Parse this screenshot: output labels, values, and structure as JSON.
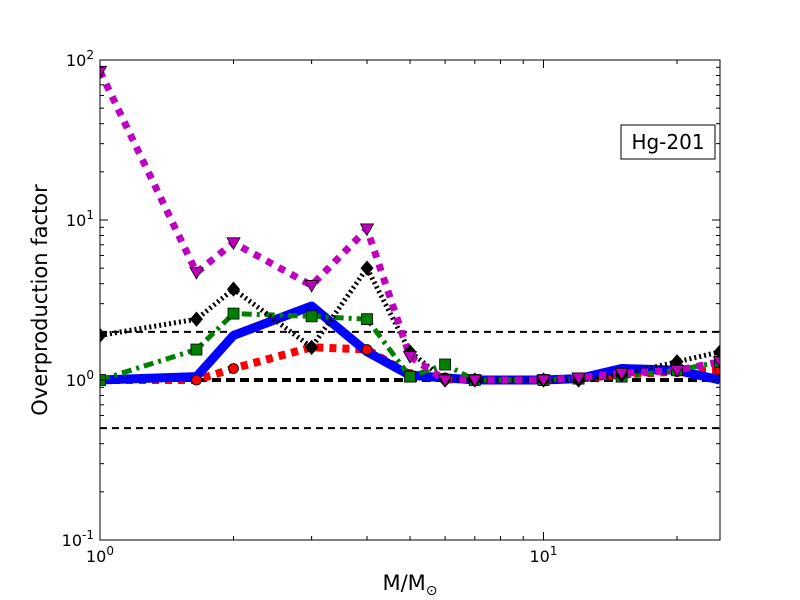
{
  "chart_data": {
    "type": "line",
    "annotation": "Hg-201",
    "xlabel": {
      "text": "M/M",
      "subscript": "⊙"
    },
    "ylabel": "Overproduction factor",
    "xscale": "log",
    "yscale": "log",
    "xlim": [
      1,
      25
    ],
    "ylim": [
      0.1,
      100
    ],
    "x_ticks": [
      {
        "value": 1,
        "base": "10",
        "exp": "0"
      },
      {
        "value": 10,
        "base": "10",
        "exp": "1"
      }
    ],
    "y_ticks": [
      {
        "value": 0.1,
        "base": "10",
        "exp": "-1"
      },
      {
        "value": 1,
        "base": "10",
        "exp": "0"
      },
      {
        "value": 10,
        "base": "10",
        "exp": "1"
      },
      {
        "value": 100,
        "base": "10",
        "exp": "2"
      }
    ],
    "reference_lines": [
      {
        "y": 2,
        "style": "dashed"
      },
      {
        "y": 1,
        "style": "dashed-thick"
      },
      {
        "y": 0.5,
        "style": "dashed"
      }
    ],
    "series": [
      {
        "color": "#ff0000",
        "dash": "dotted",
        "marker": "circle",
        "x": [
          1.0,
          1.65,
          2.0,
          3.0,
          4.0,
          5.0,
          6.0,
          7.0,
          10.0,
          12.0,
          15.0,
          20.0,
          25.0
        ],
        "y": [
          1.0,
          1.0,
          1.18,
          1.6,
          1.55,
          1.08,
          1.03,
          1.0,
          1.0,
          1.02,
          1.08,
          1.13,
          1.15
        ]
      },
      {
        "color": "#0000ff",
        "dash": "solid",
        "marker": "none",
        "x": [
          1.0,
          1.65,
          2.0,
          3.0,
          4.0,
          5.0,
          6.0,
          7.0,
          10.0,
          12.0,
          15.0,
          20.0,
          25.0
        ],
        "y": [
          1.0,
          1.05,
          1.9,
          2.9,
          1.5,
          1.07,
          1.03,
          1.0,
          1.0,
          1.02,
          1.18,
          1.15,
          1.0
        ]
      },
      {
        "color": "#007f00",
        "dash": "dashdot",
        "marker": "square",
        "x": [
          1.0,
          1.65,
          2.0,
          3.0,
          4.0,
          5.0,
          6.0,
          7.0,
          10.0,
          12.0,
          15.0,
          20.0,
          25.0
        ],
        "y": [
          1.0,
          1.55,
          2.6,
          2.5,
          2.4,
          1.05,
          1.25,
          1.0,
          1.0,
          1.02,
          1.05,
          1.15,
          1.3
        ]
      },
      {
        "color": "#000000",
        "dash": "dotted",
        "marker": "diamond",
        "x": [
          1.0,
          1.65,
          2.0,
          3.0,
          4.0,
          5.0,
          6.0,
          7.0,
          10.0,
          12.0,
          15.0,
          20.0,
          25.0
        ],
        "y": [
          1.9,
          2.4,
          3.7,
          1.6,
          5.0,
          1.5,
          1.0,
          1.0,
          1.0,
          1.0,
          1.08,
          1.3,
          1.5
        ]
      },
      {
        "color": "#bf00bf",
        "dash": "dotted",
        "marker": "triangle-down",
        "x": [
          1.0,
          1.65,
          2.0,
          3.0,
          4.0,
          5.0,
          6.0,
          7.0,
          10.0,
          12.0,
          15.0,
          20.0,
          25.0
        ],
        "y": [
          85,
          4.7,
          7.2,
          3.9,
          8.8,
          1.4,
          1.0,
          1.0,
          1.0,
          1.03,
          1.1,
          1.15,
          1.3
        ]
      }
    ]
  }
}
